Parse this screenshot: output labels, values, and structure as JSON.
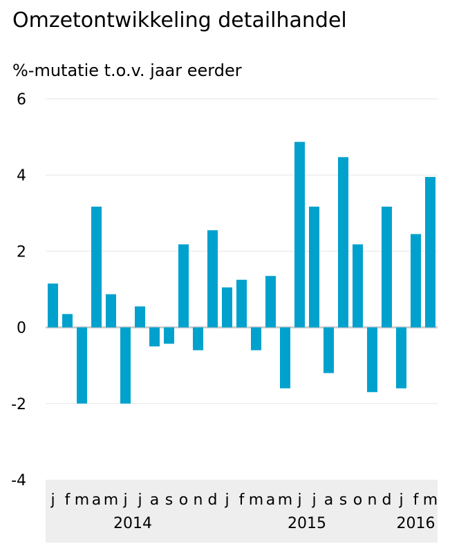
{
  "title": "Omzetontwikkeling detailhandel",
  "subtitle": "%-mutatie t.o.v. jaar eerder",
  "colors": {
    "bar": "#00a1cd",
    "grid": "#e6e6e6",
    "zero_line": "#cccccc",
    "axis_band": "#eeeeee"
  },
  "chart_data": {
    "type": "bar",
    "title": "Omzetontwikkeling detailhandel",
    "ylabel": "%-mutatie t.o.v. jaar eerder",
    "ylim": [
      -4,
      6
    ],
    "yticks": [
      -4,
      -2,
      0,
      2,
      4,
      6
    ],
    "grid": true,
    "categories": [
      "jan 2014",
      "feb 2014",
      "mrt 2014",
      "apr 2014",
      "mei 2014",
      "jun 2014",
      "jul 2014",
      "aug 2014",
      "sep 2014",
      "okt 2014",
      "nov 2014",
      "dec 2014",
      "jan 2015",
      "feb 2015",
      "mrt 2015",
      "apr 2015",
      "mei 2015",
      "jun 2015",
      "jul 2015",
      "aug 2015",
      "sep 2015",
      "okt 2015",
      "nov 2015",
      "dec 2015",
      "jan 2016",
      "feb 2016",
      "mrt 2016"
    ],
    "tick_labels": [
      "j",
      "f",
      "m",
      "a",
      "m",
      "j",
      "j",
      "a",
      "s",
      "o",
      "n",
      "d",
      "j",
      "f",
      "m",
      "a",
      "m",
      "j",
      "j",
      "a",
      "s",
      "o",
      "n",
      "d",
      "j",
      "f",
      "m"
    ],
    "year_labels": [
      {
        "label": "2014",
        "start_index": 0,
        "end_index": 11
      },
      {
        "label": "2015",
        "start_index": 12,
        "end_index": 23
      },
      {
        "label": "2016",
        "start_index": 24,
        "end_index": 26
      }
    ],
    "values": [
      1.15,
      0.35,
      -2.0,
      3.17,
      0.87,
      -2.0,
      0.55,
      -0.5,
      -0.43,
      2.18,
      -0.6,
      2.55,
      1.05,
      1.25,
      -0.6,
      1.35,
      -1.6,
      4.87,
      3.17,
      -1.2,
      4.47,
      2.18,
      -1.7,
      3.17,
      -1.6,
      2.45,
      3.95
    ]
  }
}
